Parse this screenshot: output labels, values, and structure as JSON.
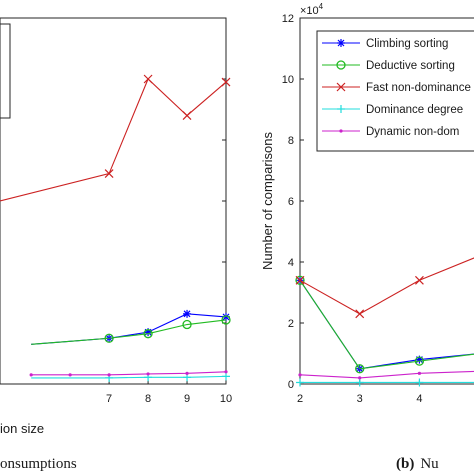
{
  "colors": {
    "climbing": "#0000ff",
    "deductive": "#22bb22",
    "fast": "#cc2222",
    "dominance": "#22dddd",
    "dynamic": "#cc22cc"
  },
  "chart_data": [
    {
      "type": "line",
      "xlabel": "ion size",
      "caption": "onsumptions",
      "categories": [
        7,
        8,
        9,
        10
      ],
      "xlim": [
        4.2,
        10
      ],
      "series": [
        {
          "key": "fast",
          "marker": "x",
          "x": [
            4.2,
            7,
            8,
            9,
            10
          ],
          "values": [
            6.0,
            6.9,
            10.0,
            8.8,
            9.9
          ]
        },
        {
          "key": "climbing",
          "marker": "star",
          "x": [
            5,
            6,
            7,
            8,
            9,
            10
          ],
          "values": [
            1.3,
            1.4,
            1.5,
            1.7,
            2.3,
            2.2
          ]
        },
        {
          "key": "deductive",
          "marker": "circle",
          "x": [
            5,
            6,
            7,
            8,
            9,
            10
          ],
          "values": [
            1.3,
            1.4,
            1.5,
            1.65,
            1.95,
            2.1
          ]
        },
        {
          "key": "dominance",
          "marker": "plus",
          "x": [
            5,
            6,
            7,
            8,
            9,
            10
          ],
          "values": [
            0.2,
            0.2,
            0.2,
            0.22,
            0.22,
            0.25
          ]
        },
        {
          "key": "dynamic",
          "marker": "dot",
          "x": [
            5,
            6,
            7,
            8,
            9,
            10
          ],
          "values": [
            0.3,
            0.3,
            0.3,
            0.33,
            0.35,
            0.4
          ]
        }
      ]
    },
    {
      "type": "line",
      "ylabel": "Number of comparisons",
      "yexponent_base": "×10",
      "yexponent_power": "4",
      "caption_label": "(b)",
      "caption_text": "Nu",
      "categories": [
        2,
        3,
        4
      ],
      "xlim": [
        2,
        5.5
      ],
      "yticks": [
        0,
        2,
        4,
        6,
        8,
        10,
        12
      ],
      "ylim": [
        0,
        12
      ],
      "legend": [
        "Climbing sorting",
        "Deductive sorting",
        "Fast non-dominance",
        "Dominance degree",
        "Dynamic non-dom"
      ],
      "series": [
        {
          "key": "climbing",
          "marker": "star",
          "x": [
            2,
            3,
            4,
            5,
            5.5
          ],
          "values": [
            3.4,
            0.5,
            0.8,
            1.0,
            1.05
          ]
        },
        {
          "key": "deductive",
          "marker": "circle",
          "x": [
            2,
            3,
            4,
            5,
            5.5
          ],
          "values": [
            3.4,
            0.5,
            0.75,
            1.0,
            1.05
          ]
        },
        {
          "key": "fast",
          "marker": "x",
          "x": [
            2,
            3,
            4,
            5.5
          ],
          "values": [
            3.4,
            2.3,
            3.4,
            4.6
          ]
        },
        {
          "key": "dominance",
          "marker": "plus",
          "x": [
            2,
            3,
            4,
            5.5
          ],
          "values": [
            0.05,
            0.05,
            0.05,
            0.05
          ]
        },
        {
          "key": "dynamic",
          "marker": "dot",
          "x": [
            2,
            3,
            4,
            5.5
          ],
          "values": [
            0.3,
            0.2,
            0.35,
            0.45
          ]
        }
      ]
    }
  ]
}
